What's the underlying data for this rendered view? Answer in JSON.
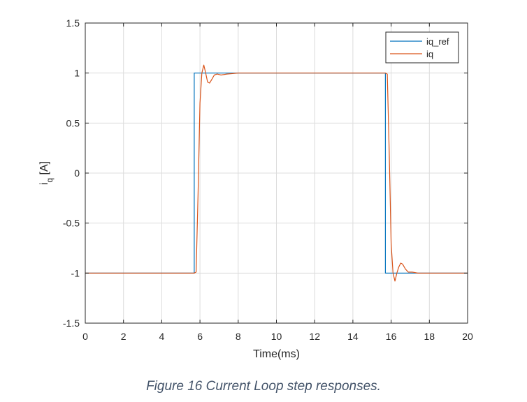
{
  "caption": "Figure 16 Current Loop step responses.",
  "chart_data": {
    "type": "line",
    "xlabel": "Time(ms)",
    "ylabel_main": "i",
    "ylabel_sub": "q",
    "ylabel_unit": " [A]",
    "xlim": [
      0,
      20
    ],
    "ylim": [
      -1.5,
      1.5
    ],
    "x_ticks": [
      "0",
      "2",
      "4",
      "6",
      "8",
      "10",
      "12",
      "14",
      "16",
      "18",
      "20"
    ],
    "y_ticks": [
      "-1.5",
      "-1",
      "-0.5",
      "0",
      "0.5",
      "1",
      "1.5"
    ],
    "grid": true,
    "legend_position": "top-right",
    "series": [
      {
        "name": "iq_ref",
        "color": "#0072bd",
        "x": [
          0,
          5.7,
          5.7,
          15.7,
          15.7,
          20
        ],
        "y": [
          -1,
          -1,
          1,
          1,
          -1,
          -1
        ]
      },
      {
        "name": "iq",
        "color": "#d95319",
        "x": [
          0,
          5.7,
          5.8,
          5.9,
          6.0,
          6.1,
          6.2,
          6.3,
          6.4,
          6.5,
          6.6,
          6.75,
          6.9,
          7.1,
          7.4,
          8.0,
          10,
          12,
          14,
          15.7,
          15.8,
          15.9,
          16.0,
          16.1,
          16.2,
          16.3,
          16.4,
          16.5,
          16.6,
          16.75,
          16.9,
          17.1,
          17.4,
          18.0,
          20
        ],
        "y": [
          -1,
          -1,
          -0.99,
          -0.2,
          0.7,
          1.0,
          1.08,
          1.0,
          0.91,
          0.9,
          0.93,
          0.98,
          0.99,
          0.98,
          0.99,
          1.0,
          1.0,
          1.0,
          1.0,
          1.0,
          0.99,
          0.2,
          -0.7,
          -1.0,
          -1.08,
          -1.0,
          -0.94,
          -0.9,
          -0.91,
          -0.96,
          -0.99,
          -0.99,
          -1.0,
          -1.0,
          -1.0
        ]
      }
    ]
  }
}
